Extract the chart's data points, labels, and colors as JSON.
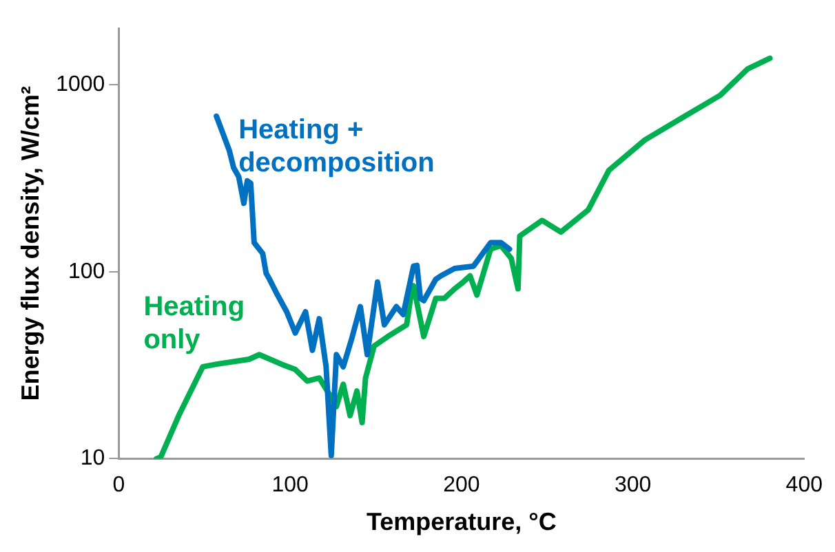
{
  "chart_data": {
    "type": "line",
    "xlabel": "Temperature, °C",
    "ylabel": "Energy flux density, W/cm²",
    "xlim": [
      0,
      400
    ],
    "xticks": [
      0,
      100,
      200,
      300,
      400
    ],
    "ylim": [
      10,
      2000
    ],
    "yticks": [
      10,
      100,
      1000
    ],
    "log": "y",
    "grid": false,
    "legend": false,
    "marker": "none",
    "line_style": "solid",
    "series": [
      {
        "name": "Heating + decomposition",
        "color": "#0070c0",
        "x": [
          57,
          64.5,
          67,
          70,
          73,
          75,
          77,
          79,
          84,
          86,
          88,
          92,
          98,
          103,
          109,
          113,
          117,
          121,
          124,
          127,
          131,
          136,
          141,
          145,
          151,
          155,
          162,
          166,
          172,
          174,
          176,
          178,
          185,
          188,
          196,
          207,
          217,
          223,
          228
        ],
        "values": [
          678,
          445,
          360,
          322,
          232,
          306,
          297,
          143,
          125,
          98,
          91,
          77,
          61,
          47,
          61,
          38,
          56,
          31,
          10.4,
          36,
          31,
          44,
          65,
          36,
          88,
          52,
          65,
          59,
          107,
          108,
          72,
          70,
          91,
          95,
          104,
          107,
          143,
          143,
          132
        ]
      },
      {
        "name": "Heating only",
        "color": "#00b050",
        "x": [
          22,
          24.5,
          35,
          49,
          57,
          76,
          82,
          95,
          103,
          110,
          117,
          123,
          127,
          131,
          135,
          139,
          142,
          144,
          149,
          157,
          168,
          171,
          172,
          178,
          185,
          190,
          196,
          201,
          205,
          209,
          217,
          223,
          229,
          233,
          234,
          247,
          258,
          274,
          286,
          307,
          329,
          351,
          367,
          380
        ],
        "values": [
          10,
          10.2,
          17,
          31,
          32,
          34,
          36,
          32,
          30,
          26,
          27,
          22,
          19,
          25,
          17,
          23,
          15.6,
          27,
          40,
          45,
          52,
          80,
          84,
          45,
          72,
          72,
          81,
          88,
          95,
          75,
          132,
          138,
          118,
          81,
          155,
          188,
          163,
          214,
          348,
          506,
          667,
          878,
          1214,
          1383
        ]
      }
    ]
  }
}
